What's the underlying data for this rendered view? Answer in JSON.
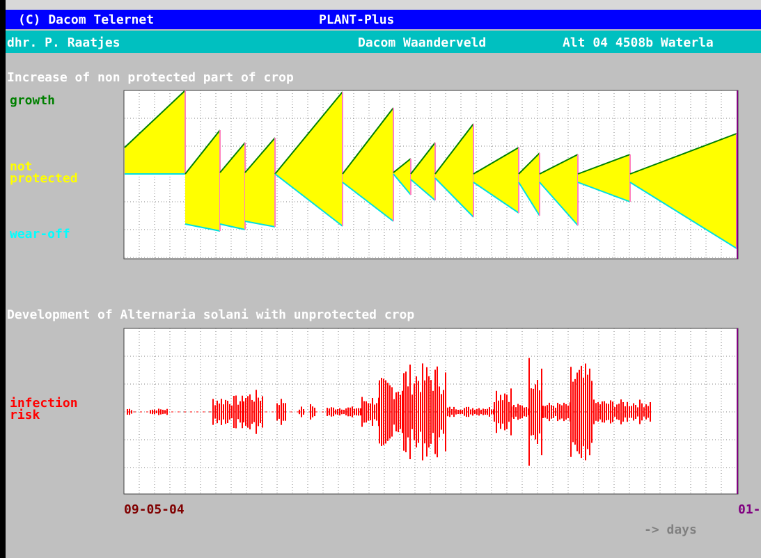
{
  "header": {
    "copyright": "(C) Dacom Telernet",
    "app": "PLANT-Plus"
  },
  "subheader": {
    "user": "dhr. P. Raatjes",
    "company": "Dacom Waanderveld",
    "address": "Alt 04 4508b Waterla"
  },
  "panel_protection": {
    "title": "Increase of non protected part of crop",
    "labels": [
      "growth",
      "not",
      "protected",
      "wear-off"
    ]
  },
  "panel_disease": {
    "title": "Development of Alternaria solani with unprotected crop",
    "labels": [
      "infection",
      "risk"
    ]
  },
  "axis": {
    "start": "09-05-04",
    "end": "01-",
    "unit": "-> days"
  }
}
